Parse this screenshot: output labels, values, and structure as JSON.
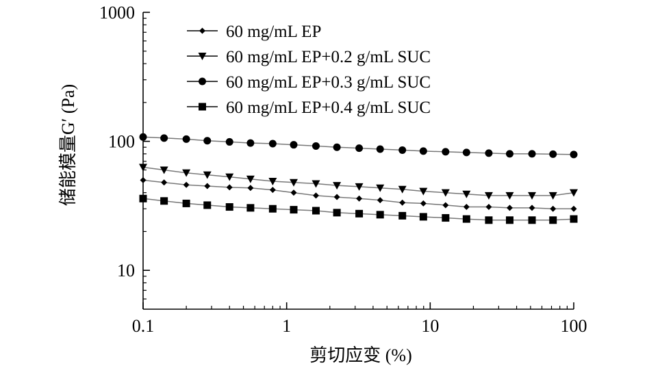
{
  "chart_data": {
    "type": "line",
    "title": "",
    "xlabel": "剪切应变 (%)",
    "ylabel": "储能模量G′ (Pa)",
    "xscale": "log",
    "yscale": "log",
    "xlim": [
      0.1,
      100
    ],
    "ylim": [
      5,
      1000
    ],
    "xticks": [
      0.1,
      1,
      10,
      100
    ],
    "xtick_labels": [
      "0.1",
      "1",
      "10",
      "100"
    ],
    "yticks": [
      10,
      100,
      1000
    ],
    "ytick_labels": [
      "10",
      "100",
      "1000"
    ],
    "grid": false,
    "legend_position": "top",
    "x": [
      0.1,
      0.14,
      0.2,
      0.28,
      0.4,
      0.56,
      0.8,
      1.12,
      1.6,
      2.24,
      3.2,
      4.48,
      6.4,
      8.96,
      12.8,
      17.9,
      25.6,
      35.8,
      51.2,
      71.7,
      100
    ],
    "series": [
      {
        "name": "60 mg/mL EP",
        "marker": "diamond",
        "values": [
          50,
          48,
          46,
          45,
          44,
          43.5,
          42,
          40,
          38,
          37,
          36,
          35,
          33.5,
          33,
          32,
          31,
          31,
          30.5,
          30.5,
          30,
          30
        ]
      },
      {
        "name": "60 mg/mL EP+0.2 g/mL SUC",
        "marker": "triangle-down",
        "values": [
          63,
          60,
          57,
          55,
          53,
          51,
          49,
          48,
          47,
          45.5,
          44.5,
          43.5,
          42.5,
          41,
          40,
          39,
          38,
          38,
          38,
          38,
          40
        ]
      },
      {
        "name": "60 mg/mL EP+0.3 g/mL SUC",
        "marker": "circle",
        "values": [
          108,
          106,
          104,
          101,
          99,
          97,
          96,
          94,
          92,
          90,
          88.5,
          87,
          85.5,
          84,
          83,
          82,
          81,
          80,
          80,
          79.5,
          79
        ]
      },
      {
        "name": "60 mg/mL EP+0.4 g/mL SUC",
        "marker": "square",
        "values": [
          36,
          34.5,
          33,
          32,
          31,
          30.5,
          30,
          29.5,
          29,
          28,
          27.5,
          27,
          26.5,
          26,
          25.5,
          25,
          24.5,
          24.5,
          24.5,
          24.5,
          25
        ]
      }
    ]
  }
}
